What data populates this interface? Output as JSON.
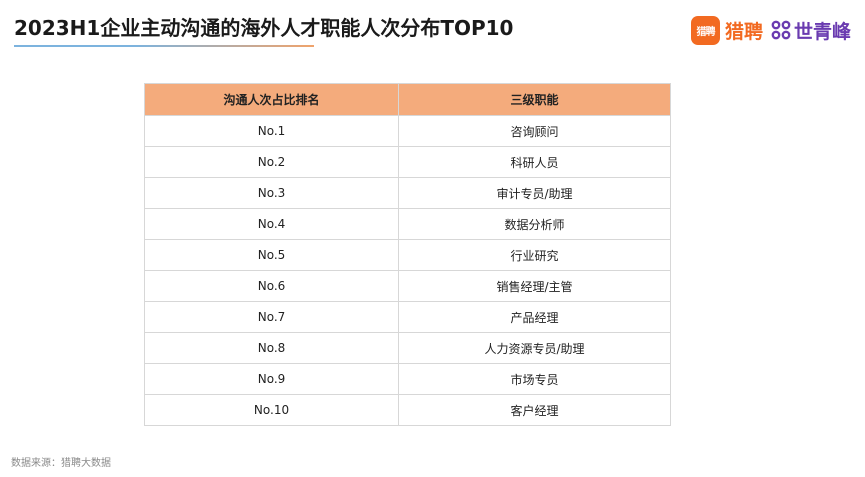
{
  "header": {
    "title": "2023H1企业主动沟通的海外人才职能人次分布TOP10"
  },
  "logos": {
    "liepin_badge": "猎聘",
    "liepin_name": "猎聘",
    "sqf_name": "世青峰",
    "liepin_color": "#f26a21",
    "sqf_color": "#6a3bb0"
  },
  "table": {
    "columns": [
      "沟通人次占比排名",
      "三级职能"
    ],
    "rows": [
      [
        "No.1",
        "咨询顾问"
      ],
      [
        "No.2",
        "科研人员"
      ],
      [
        "No.3",
        "审计专员/助理"
      ],
      [
        "No.4",
        "数据分析师"
      ],
      [
        "No.5",
        "行业研究"
      ],
      [
        "No.6",
        "销售经理/主管"
      ],
      [
        "No.7",
        "产品经理"
      ],
      [
        "No.8",
        "人力资源专员/助理"
      ],
      [
        "No.9",
        "市场专员"
      ],
      [
        "No.10",
        "客户经理"
      ]
    ],
    "header_color": "#f4ab7c"
  },
  "footer": {
    "source": "数据来源：猎聘大数据"
  }
}
